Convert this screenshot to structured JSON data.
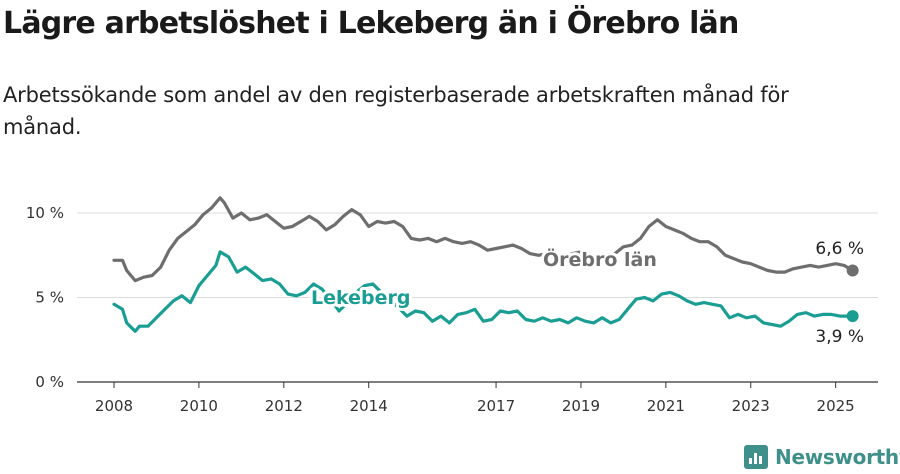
{
  "title": "Lägre arbetslöshet i Lekeberg än i Örebro län",
  "subtitle": "Arbetssökande som andel av den registerbaserade arbetskraften månad för månad.",
  "brand": "Newsworthy",
  "chart_data": {
    "type": "line",
    "title": "Lägre arbetslöshet i Lekeberg än i Örebro län",
    "subtitle": "Arbetssökande som andel av den registerbaserade arbetskraften månad för månad.",
    "x_ticks": [
      "2008",
      "2010",
      "2012",
      "2014",
      "2017",
      "2019",
      "2021",
      "2023",
      "2025"
    ],
    "y_ticks": [
      "0 %",
      "5 %",
      "10 %"
    ],
    "ylim": [
      0,
      11.5
    ],
    "grid": true,
    "series": [
      {
        "name": "Örebro län",
        "color": "#6e6e6e",
        "end_label": "6,6 %",
        "points": [
          [
            2008.0,
            7.2
          ],
          [
            2008.2,
            7.2
          ],
          [
            2008.3,
            6.6
          ],
          [
            2008.5,
            6.0
          ],
          [
            2008.7,
            6.2
          ],
          [
            2008.9,
            6.3
          ],
          [
            2009.1,
            6.8
          ],
          [
            2009.3,
            7.8
          ],
          [
            2009.5,
            8.5
          ],
          [
            2009.7,
            8.9
          ],
          [
            2009.9,
            9.3
          ],
          [
            2010.1,
            9.9
          ],
          [
            2010.3,
            10.3
          ],
          [
            2010.5,
            10.9
          ],
          [
            2010.6,
            10.6
          ],
          [
            2010.8,
            9.7
          ],
          [
            2011.0,
            10.0
          ],
          [
            2011.2,
            9.6
          ],
          [
            2011.4,
            9.7
          ],
          [
            2011.6,
            9.9
          ],
          [
            2011.8,
            9.5
          ],
          [
            2012.0,
            9.1
          ],
          [
            2012.2,
            9.2
          ],
          [
            2012.4,
            9.5
          ],
          [
            2012.6,
            9.8
          ],
          [
            2012.8,
            9.5
          ],
          [
            2013.0,
            9.0
          ],
          [
            2013.2,
            9.3
          ],
          [
            2013.4,
            9.8
          ],
          [
            2013.6,
            10.2
          ],
          [
            2013.8,
            9.9
          ],
          [
            2014.0,
            9.2
          ],
          [
            2014.2,
            9.5
          ],
          [
            2014.4,
            9.4
          ],
          [
            2014.6,
            9.5
          ],
          [
            2014.8,
            9.2
          ],
          [
            2015.0,
            8.5
          ],
          [
            2015.2,
            8.4
          ],
          [
            2015.4,
            8.5
          ],
          [
            2015.6,
            8.3
          ],
          [
            2015.8,
            8.5
          ],
          [
            2016.0,
            8.3
          ],
          [
            2016.2,
            8.2
          ],
          [
            2016.4,
            8.3
          ],
          [
            2016.6,
            8.1
          ],
          [
            2016.8,
            7.8
          ],
          [
            2017.0,
            7.9
          ],
          [
            2017.2,
            8.0
          ],
          [
            2017.4,
            8.1
          ],
          [
            2017.6,
            7.9
          ],
          [
            2017.8,
            7.6
          ],
          [
            2018.0,
            7.5
          ],
          [
            2018.2,
            7.6
          ],
          [
            2018.4,
            7.5
          ],
          [
            2018.6,
            7.4
          ],
          [
            2018.8,
            7.6
          ],
          [
            2019.0,
            7.7
          ],
          [
            2019.2,
            7.6
          ],
          [
            2019.4,
            7.3
          ],
          [
            2019.6,
            7.4
          ],
          [
            2019.8,
            7.6
          ],
          [
            2020.0,
            8.0
          ],
          [
            2020.2,
            8.1
          ],
          [
            2020.4,
            8.5
          ],
          [
            2020.6,
            9.2
          ],
          [
            2020.8,
            9.6
          ],
          [
            2021.0,
            9.2
          ],
          [
            2021.2,
            9.0
          ],
          [
            2021.4,
            8.8
          ],
          [
            2021.6,
            8.5
          ],
          [
            2021.8,
            8.3
          ],
          [
            2022.0,
            8.3
          ],
          [
            2022.2,
            8.0
          ],
          [
            2022.4,
            7.5
          ],
          [
            2022.6,
            7.3
          ],
          [
            2022.8,
            7.1
          ],
          [
            2023.0,
            7.0
          ],
          [
            2023.2,
            6.8
          ],
          [
            2023.4,
            6.6
          ],
          [
            2023.6,
            6.5
          ],
          [
            2023.8,
            6.5
          ],
          [
            2024.0,
            6.7
          ],
          [
            2024.2,
            6.8
          ],
          [
            2024.4,
            6.9
          ],
          [
            2024.6,
            6.8
          ],
          [
            2024.8,
            6.9
          ],
          [
            2025.0,
            7.0
          ],
          [
            2025.2,
            6.9
          ],
          [
            2025.4,
            6.6
          ]
        ]
      },
      {
        "name": "Lekeberg",
        "color": "#1a9e94",
        "end_label": "3,9 %",
        "points": [
          [
            2008.0,
            4.6
          ],
          [
            2008.2,
            4.3
          ],
          [
            2008.3,
            3.5
          ],
          [
            2008.5,
            3.0
          ],
          [
            2008.6,
            3.3
          ],
          [
            2008.8,
            3.3
          ],
          [
            2009.0,
            3.8
          ],
          [
            2009.2,
            4.3
          ],
          [
            2009.4,
            4.8
          ],
          [
            2009.6,
            5.1
          ],
          [
            2009.8,
            4.7
          ],
          [
            2010.0,
            5.7
          ],
          [
            2010.2,
            6.3
          ],
          [
            2010.4,
            6.9
          ],
          [
            2010.5,
            7.7
          ],
          [
            2010.7,
            7.4
          ],
          [
            2010.9,
            6.5
          ],
          [
            2011.1,
            6.8
          ],
          [
            2011.3,
            6.4
          ],
          [
            2011.5,
            6.0
          ],
          [
            2011.7,
            6.1
          ],
          [
            2011.9,
            5.8
          ],
          [
            2012.1,
            5.2
          ],
          [
            2012.3,
            5.1
          ],
          [
            2012.5,
            5.3
          ],
          [
            2012.7,
            5.8
          ],
          [
            2012.9,
            5.5
          ],
          [
            2013.1,
            4.9
          ],
          [
            2013.3,
            4.2
          ],
          [
            2013.5,
            4.7
          ],
          [
            2013.7,
            5.3
          ],
          [
            2013.9,
            5.7
          ],
          [
            2014.1,
            5.8
          ],
          [
            2014.3,
            5.3
          ],
          [
            2014.5,
            4.9
          ],
          [
            2014.7,
            4.4
          ],
          [
            2014.9,
            3.9
          ],
          [
            2015.1,
            4.2
          ],
          [
            2015.3,
            4.1
          ],
          [
            2015.5,
            3.6
          ],
          [
            2015.7,
            3.9
          ],
          [
            2015.9,
            3.5
          ],
          [
            2016.1,
            4.0
          ],
          [
            2016.3,
            4.1
          ],
          [
            2016.5,
            4.3
          ],
          [
            2016.7,
            3.6
          ],
          [
            2016.9,
            3.7
          ],
          [
            2017.1,
            4.2
          ],
          [
            2017.3,
            4.1
          ],
          [
            2017.5,
            4.2
          ],
          [
            2017.7,
            3.7
          ],
          [
            2017.9,
            3.6
          ],
          [
            2018.1,
            3.8
          ],
          [
            2018.3,
            3.6
          ],
          [
            2018.5,
            3.7
          ],
          [
            2018.7,
            3.5
          ],
          [
            2018.9,
            3.8
          ],
          [
            2019.1,
            3.6
          ],
          [
            2019.3,
            3.5
          ],
          [
            2019.5,
            3.8
          ],
          [
            2019.7,
            3.5
          ],
          [
            2019.9,
            3.7
          ],
          [
            2020.1,
            4.3
          ],
          [
            2020.3,
            4.9
          ],
          [
            2020.5,
            5.0
          ],
          [
            2020.7,
            4.8
          ],
          [
            2020.9,
            5.2
          ],
          [
            2021.1,
            5.3
          ],
          [
            2021.3,
            5.1
          ],
          [
            2021.5,
            4.8
          ],
          [
            2021.7,
            4.6
          ],
          [
            2021.9,
            4.7
          ],
          [
            2022.1,
            4.6
          ],
          [
            2022.3,
            4.5
          ],
          [
            2022.5,
            3.8
          ],
          [
            2022.7,
            4.0
          ],
          [
            2022.9,
            3.8
          ],
          [
            2023.1,
            3.9
          ],
          [
            2023.3,
            3.5
          ],
          [
            2023.5,
            3.4
          ],
          [
            2023.7,
            3.3
          ],
          [
            2023.9,
            3.6
          ],
          [
            2024.1,
            4.0
          ],
          [
            2024.3,
            4.1
          ],
          [
            2024.5,
            3.9
          ],
          [
            2024.7,
            4.0
          ],
          [
            2024.9,
            4.0
          ],
          [
            2025.1,
            3.9
          ],
          [
            2025.3,
            3.9
          ],
          [
            2025.4,
            3.9
          ]
        ]
      }
    ]
  }
}
